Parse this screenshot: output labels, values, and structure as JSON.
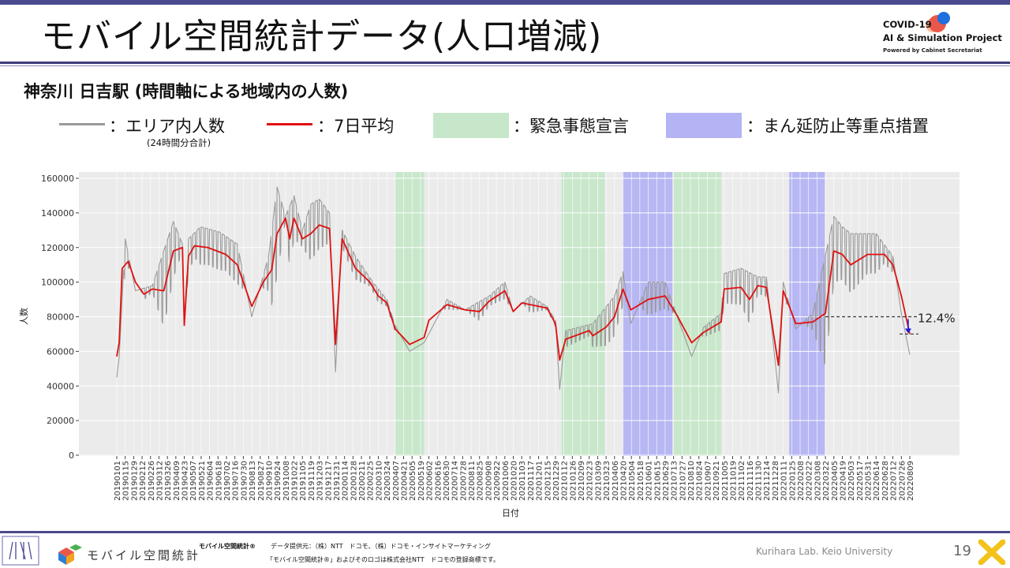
{
  "header": {
    "title": "モバイル空間統計データ(人口増減)",
    "logo_line1": "COVID-19",
    "logo_line2": "AI & Simulation Project",
    "logo_line3": "Powered by Cabinet Secretariat",
    "logo_colors": [
      "#e8574a",
      "#1e6fe0",
      "#f7b99a"
    ]
  },
  "subtitle": "神奈川 日吉駅 (時間軸による地域内の人数)",
  "legend": {
    "area_count_label": "：エリア内人数",
    "area_count_note": "(24時間分合計)",
    "avg_label": "：7日平均",
    "emergency_label": "：緊急事態宣言",
    "quasi_label": "：まん延防止等重点措置",
    "colors": {
      "raw": "#9a9a9a",
      "avg": "#e01010",
      "emergency": "#c6e7c9",
      "quasi": "#b4b4f4"
    }
  },
  "chart_data": {
    "type": "line",
    "xlabel": "日付",
    "ylabel": "人数",
    "ylim": [
      0,
      160000
    ],
    "yticks": [
      0,
      20000,
      40000,
      60000,
      80000,
      100000,
      120000,
      140000,
      160000
    ],
    "grid": true,
    "x_ticks": [
      "20190101",
      "20190115",
      "20190129",
      "20190212",
      "20190226",
      "20190312",
      "20190326",
      "20190409",
      "20190423",
      "20190507",
      "20190521",
      "20190604",
      "20190618",
      "20190702",
      "20190716",
      "20190730",
      "20190813",
      "20190827",
      "20190910",
      "20190924",
      "20191008",
      "20191022",
      "20191105",
      "20191119",
      "20191203",
      "20191217",
      "20191231",
      "20200114",
      "20200128",
      "20200211",
      "20200225",
      "20200310",
      "20200324",
      "20200407",
      "20200421",
      "20200505",
      "20200519",
      "20200602",
      "20200616",
      "20200630",
      "20200714",
      "20200728",
      "20200811",
      "20200825",
      "20200908",
      "20200922",
      "20201006",
      "20201020",
      "20201103",
      "20201117",
      "20201201",
      "20201215",
      "20201229",
      "20210112",
      "20210126",
      "20210209",
      "20210223",
      "20210309",
      "20210323",
      "20210406",
      "20210420",
      "20210504",
      "20210518",
      "20210601",
      "20210615",
      "20210629",
      "20210713",
      "20210727",
      "20210810",
      "20210824",
      "20210907",
      "20210921",
      "20211005",
      "20211019",
      "20211102",
      "20211116",
      "20211130",
      "20211214",
      "20211228",
      "20220111",
      "20220125",
      "20220208",
      "20220222",
      "20220308",
      "20220322",
      "20220405",
      "20220419",
      "20220503",
      "20220517",
      "20220531",
      "20220614",
      "20220628",
      "20220712",
      "20220726",
      "20220809"
    ],
    "periods": [
      {
        "type": "emergency",
        "start": "20200407",
        "end": "20200525"
      },
      {
        "type": "emergency",
        "start": "20210108",
        "end": "20210321"
      },
      {
        "type": "quasi",
        "start": "20210420",
        "end": "20210711"
      },
      {
        "type": "emergency",
        "start": "20210712",
        "end": "20210930"
      },
      {
        "type": "quasi",
        "start": "20220121",
        "end": "20220321"
      }
    ],
    "series": [
      {
        "key": "raw",
        "points": [
          [
            "20190101",
            45000
          ],
          [
            "20190105",
            57000
          ],
          [
            "20190115",
            125000
          ],
          [
            "20190201",
            95000
          ],
          [
            "20190301",
            98000
          ],
          [
            "20190405",
            135000
          ],
          [
            "20190420",
            122000
          ],
          [
            "20190423",
            75000
          ],
          [
            "20190430",
            125000
          ],
          [
            "20190520",
            132000
          ],
          [
            "20190620",
            129000
          ],
          [
            "20190720",
            122000
          ],
          [
            "20190813",
            80000
          ],
          [
            "20190910",
            115000
          ],
          [
            "20190924",
            155000
          ],
          [
            "20191008",
            138000
          ],
          [
            "20191022",
            150000
          ],
          [
            "20191105",
            130000
          ],
          [
            "20191119",
            145000
          ],
          [
            "20191203",
            148000
          ],
          [
            "20191220",
            140000
          ],
          [
            "20191230",
            48000
          ],
          [
            "20200110",
            130000
          ],
          [
            "20200201",
            115000
          ],
          [
            "20200301",
            100000
          ],
          [
            "20200324",
            90000
          ],
          [
            "20200407",
            75000
          ],
          [
            "20200501",
            60000
          ],
          [
            "20200525",
            65000
          ],
          [
            "20200702",
            90000
          ],
          [
            "20200801",
            84000
          ],
          [
            "20200910",
            92000
          ],
          [
            "20201006",
            100000
          ],
          [
            "20201020",
            83000
          ],
          [
            "20201117",
            92000
          ],
          [
            "20201215",
            86000
          ],
          [
            "20201229",
            78000
          ],
          [
            "20210105",
            38000
          ],
          [
            "20210115",
            72000
          ],
          [
            "20210301",
            76000
          ],
          [
            "20210406",
            92000
          ],
          [
            "20210420",
            106000
          ],
          [
            "20210503",
            76000
          ],
          [
            "20210601",
            100000
          ],
          [
            "20210629",
            100000
          ],
          [
            "20210713",
            86000
          ],
          [
            "20210812",
            57000
          ],
          [
            "20210901",
            74000
          ],
          [
            "20210930",
            82000
          ],
          [
            "20211005",
            105000
          ],
          [
            "20211102",
            108000
          ],
          [
            "20211130",
            103000
          ],
          [
            "20211214",
            103000
          ],
          [
            "20220103",
            36000
          ],
          [
            "20220111",
            100000
          ],
          [
            "20220201",
            73000
          ],
          [
            "20220301",
            82000
          ],
          [
            "20220405",
            138000
          ],
          [
            "20220419",
            132000
          ],
          [
            "20220503",
            128000
          ],
          [
            "20220614",
            128000
          ],
          [
            "20220712",
            115000
          ],
          [
            "20220726",
            82000
          ],
          [
            "20220809",
            58000
          ]
        ]
      },
      {
        "key": "avg",
        "points": [
          [
            "20190101",
            57000
          ],
          [
            "20190105",
            65000
          ],
          [
            "20190110",
            108000
          ],
          [
            "20190120",
            112000
          ],
          [
            "20190201",
            100000
          ],
          [
            "20190215",
            93000
          ],
          [
            "20190301",
            96000
          ],
          [
            "20190320",
            95000
          ],
          [
            "20190405",
            118000
          ],
          [
            "20190420",
            120000
          ],
          [
            "20190423",
            75000
          ],
          [
            "20190430",
            115000
          ],
          [
            "20190510",
            121000
          ],
          [
            "20190601",
            120000
          ],
          [
            "20190701",
            116000
          ],
          [
            "20190720",
            110000
          ],
          [
            "20190813",
            86000
          ],
          [
            "20190901",
            100000
          ],
          [
            "20190915",
            107000
          ],
          [
            "20190924",
            128000
          ],
          [
            "20191008",
            137000
          ],
          [
            "20191015",
            125000
          ],
          [
            "20191022",
            137000
          ],
          [
            "20191105",
            125000
          ],
          [
            "20191119",
            128000
          ],
          [
            "20191203",
            133000
          ],
          [
            "20191220",
            131000
          ],
          [
            "20191230",
            64000
          ],
          [
            "20200110",
            125000
          ],
          [
            "20200201",
            108000
          ],
          [
            "20200225",
            100000
          ],
          [
            "20200310",
            92000
          ],
          [
            "20200324",
            88000
          ],
          [
            "20200407",
            73000
          ],
          [
            "20200501",
            64000
          ],
          [
            "20200525",
            68000
          ],
          [
            "20200602",
            78000
          ],
          [
            "20200702",
            87000
          ],
          [
            "20200801",
            84000
          ],
          [
            "20200825",
            83000
          ],
          [
            "20200910",
            89000
          ],
          [
            "20201006",
            95000
          ],
          [
            "20201020",
            83000
          ],
          [
            "20201103",
            88000
          ],
          [
            "20201117",
            87000
          ],
          [
            "20201215",
            85000
          ],
          [
            "20201229",
            76000
          ],
          [
            "20210105",
            55000
          ],
          [
            "20210115",
            67000
          ],
          [
            "20210223",
            72000
          ],
          [
            "20210301",
            69000
          ],
          [
            "20210323",
            74000
          ],
          [
            "20210406",
            80000
          ],
          [
            "20210420",
            96000
          ],
          [
            "20210503",
            84000
          ],
          [
            "20210601",
            90000
          ],
          [
            "20210629",
            92000
          ],
          [
            "20210720",
            80000
          ],
          [
            "20210812",
            65000
          ],
          [
            "20210901",
            71000
          ],
          [
            "20210930",
            77000
          ],
          [
            "20211005",
            96000
          ],
          [
            "20211102",
            97000
          ],
          [
            "20211116",
            90000
          ],
          [
            "20211130",
            98000
          ],
          [
            "20211214",
            97000
          ],
          [
            "20220103",
            52000
          ],
          [
            "20220111",
            95000
          ],
          [
            "20220201",
            76000
          ],
          [
            "20220301",
            77000
          ],
          [
            "20220322",
            82000
          ],
          [
            "20220405",
            118000
          ],
          [
            "20220419",
            116000
          ],
          [
            "20220503",
            110000
          ],
          [
            "20220531",
            116000
          ],
          [
            "20220628",
            116000
          ],
          [
            "20220712",
            110000
          ],
          [
            "20220726",
            92000
          ],
          [
            "20220809",
            70000
          ]
        ]
      }
    ],
    "annotation": {
      "label": "12.4%",
      "ref_value": 80000,
      "end_value": 70000,
      "from_date": "20220322"
    }
  },
  "footer": {
    "brand": "モバイル空間統計",
    "registered": "モバイル空間統計®",
    "credit": "データ提供元：（株）NTT　ドコモ、（株）ドコモ・インサイトマーケティング",
    "trademark": "「モバイル空間統計®」およびそのロゴは株式会社NTT　ドコモの登録商標です。",
    "lab": "Kurihara Lab. Keio University",
    "page_number": "19"
  }
}
